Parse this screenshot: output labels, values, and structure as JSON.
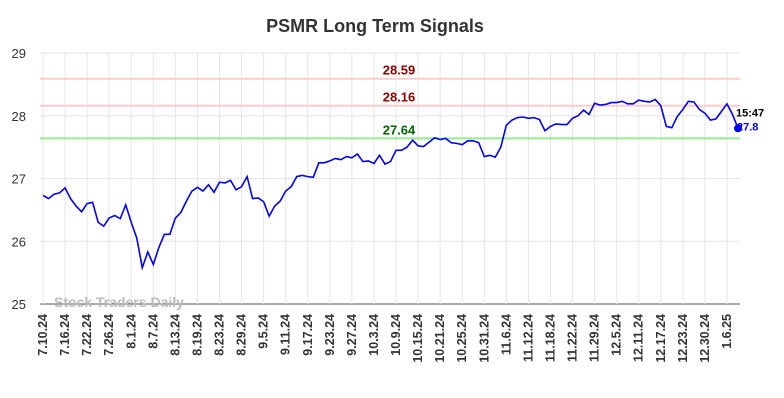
{
  "chart_data": {
    "type": "line",
    "title": "PSMR Long Term Signals",
    "watermark": "Stock Traders Daily",
    "categories": [
      "7.10.24",
      null,
      null,
      null,
      "7.16.24",
      null,
      null,
      null,
      "7.22.24",
      null,
      null,
      null,
      "7.26.24",
      null,
      null,
      null,
      "8.1.24",
      null,
      null,
      null,
      "8.7.24",
      null,
      null,
      null,
      "8.13.24",
      null,
      null,
      null,
      "8.19.24",
      null,
      null,
      null,
      "8.23.24",
      null,
      null,
      null,
      "8.29.24",
      null,
      null,
      null,
      "9.5.24",
      null,
      null,
      null,
      "9.11.24",
      null,
      null,
      null,
      "9.17.24",
      null,
      null,
      null,
      "9.23.24",
      null,
      null,
      null,
      "9.27.24",
      null,
      null,
      null,
      "10.3.24",
      null,
      null,
      null,
      "10.9.24",
      null,
      null,
      null,
      "10.15.24",
      null,
      null,
      null,
      "10.21.24",
      null,
      null,
      null,
      "10.25.24",
      null,
      null,
      null,
      "10.31.24",
      null,
      null,
      null,
      "11.6.24",
      null,
      null,
      null,
      "11.12.24",
      null,
      null,
      null,
      "11.18.24",
      null,
      null,
      null,
      "11.22.24",
      null,
      null,
      null,
      "11.29.24",
      null,
      null,
      null,
      "12.5.24",
      null,
      null,
      null,
      "12.11.24",
      null,
      null,
      null,
      "12.17.24",
      null,
      null,
      null,
      "12.23.24",
      null,
      null,
      null,
      "12.30.24",
      null,
      null,
      null,
      "1.6.25",
      null,
      null
    ],
    "series": [
      {
        "name": "PSMR",
        "color": "#0000ee",
        "values": [
          26.73,
          26.68,
          26.75,
          26.77,
          26.85,
          26.68,
          26.56,
          26.47,
          26.6,
          26.62,
          26.3,
          26.24,
          26.37,
          26.41,
          26.36,
          26.58,
          26.3,
          26.05,
          25.58,
          25.83,
          25.63,
          25.9,
          26.11,
          26.11,
          26.37,
          26.46,
          26.64,
          26.8,
          26.86,
          26.8,
          26.9,
          26.78,
          26.94,
          26.93,
          26.97,
          26.82,
          26.87,
          27.03,
          26.68,
          26.69,
          26.63,
          26.4,
          26.56,
          26.64,
          26.8,
          26.87,
          27.03,
          27.05,
          27.03,
          27.02,
          27.25,
          27.25,
          27.28,
          27.32,
          27.3,
          27.35,
          27.33,
          27.39,
          27.27,
          27.28,
          27.24,
          27.37,
          27.23,
          27.27,
          27.45,
          27.45,
          27.5,
          27.61,
          27.52,
          27.51,
          27.58,
          27.65,
          27.62,
          27.64,
          27.57,
          27.56,
          27.54,
          27.6,
          27.6,
          27.57,
          27.35,
          27.37,
          27.34,
          27.5,
          27.85,
          27.93,
          27.97,
          27.98,
          27.96,
          27.97,
          27.94,
          27.76,
          27.83,
          27.87,
          27.86,
          27.86,
          27.96,
          28.0,
          28.09,
          28.02,
          28.2,
          28.17,
          28.18,
          28.21,
          28.21,
          28.23,
          28.19,
          28.19,
          28.25,
          28.23,
          28.22,
          28.26,
          28.16,
          27.83,
          27.81,
          27.99,
          28.1,
          28.23,
          28.22,
          28.1,
          28.04,
          27.93,
          27.95,
          28.07,
          28.19,
          28.02,
          27.8
        ]
      }
    ],
    "last_time": "15:47",
    "hlines": [
      {
        "value": 28.59,
        "color": "#ffcccc",
        "label_color": "#8b0000"
      },
      {
        "value": 28.16,
        "color": "#ffcccc",
        "label_color": "#8b0000"
      },
      {
        "value": 27.64,
        "color": "#90ee90",
        "label_color": "#006400"
      }
    ],
    "ylim": [
      25,
      29
    ],
    "yticks": [
      25,
      26,
      27,
      28,
      29
    ],
    "grid": true
  }
}
